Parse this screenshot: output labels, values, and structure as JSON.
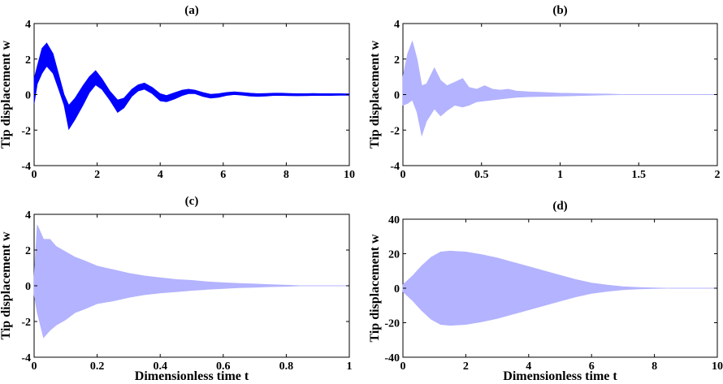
{
  "chart_data": [
    {
      "type": "line",
      "title": "(a)",
      "xlabel": "",
      "ylabel": "Tip displacement w",
      "xlim": [
        0,
        10
      ],
      "ylim": [
        -4,
        4
      ],
      "xticks": [
        "0",
        "2",
        "4",
        "6",
        "8",
        "10"
      ],
      "yticks": [
        "-4",
        "-2",
        "0",
        "2",
        "4"
      ],
      "grid": false,
      "color": "#0000ff",
      "series": [
        {
          "envelope": {
            "x": [
              0,
              0.1,
              0.25,
              0.4,
              0.6,
              0.8,
              0.95,
              1.1,
              1.3,
              1.55,
              1.75,
              1.95,
              2.15,
              2.4,
              2.65,
              2.85,
              3.1,
              3.3,
              3.5,
              3.75,
              4.0,
              4.2,
              4.45,
              4.7,
              4.9,
              5.1,
              5.35,
              5.6,
              5.85,
              6.1,
              6.35,
              6.6,
              6.85,
              7.1,
              7.35,
              7.6,
              7.85,
              8.1,
              8.35,
              8.6,
              8.85,
              9.1,
              9.4,
              9.7,
              10.0
            ],
            "upper": [
              0.9,
              1.6,
              2.6,
              2.9,
              2.3,
              1.0,
              0.0,
              -0.6,
              -0.2,
              0.5,
              1.0,
              1.35,
              0.9,
              0.2,
              -0.3,
              -0.2,
              0.3,
              0.55,
              0.65,
              0.4,
              0.05,
              -0.05,
              0.1,
              0.25,
              0.3,
              0.25,
              0.12,
              0.02,
              0.05,
              0.12,
              0.15,
              0.12,
              0.08,
              0.05,
              0.06,
              0.08,
              0.08,
              0.06,
              0.05,
              0.05,
              0.06,
              0.05,
              0.05,
              0.05,
              0.04
            ],
            "lower": [
              -0.5,
              0.6,
              1.2,
              1.6,
              1.2,
              0.2,
              -0.6,
              -1.95,
              -1.4,
              -0.6,
              0.1,
              0.55,
              0.3,
              -0.3,
              -1.0,
              -0.75,
              -0.1,
              0.2,
              0.3,
              0.05,
              -0.35,
              -0.4,
              -0.25,
              -0.05,
              0.05,
              0.05,
              -0.1,
              -0.2,
              -0.15,
              -0.05,
              0.0,
              -0.03,
              -0.08,
              -0.1,
              -0.08,
              -0.05,
              -0.05,
              -0.06,
              -0.07,
              -0.06,
              -0.05,
              -0.05,
              -0.05,
              -0.04,
              -0.04
            ]
          }
        }
      ]
    },
    {
      "type": "line",
      "title": "(b)",
      "xlabel": "",
      "ylabel": "Tip displacement w",
      "xlim": [
        0,
        2
      ],
      "ylim": [
        -4,
        4
      ],
      "xticks": [
        "0",
        "0.5",
        "1",
        "1.5",
        "2"
      ],
      "yticks": [
        "-4",
        "-2",
        "0",
        "2",
        "4"
      ],
      "grid": false,
      "color": "#b3b3ff",
      "series": [
        {
          "envelope": {
            "x": [
              0,
              0.03,
              0.06,
              0.09,
              0.12,
              0.15,
              0.2,
              0.24,
              0.28,
              0.33,
              0.38,
              0.42,
              0.47,
              0.52,
              0.57,
              0.62,
              0.67,
              0.72,
              0.8,
              0.9,
              1.0,
              1.1,
              1.2,
              1.3,
              1.4
            ],
            "upper": [
              1.0,
              2.3,
              3.0,
              2.0,
              0.5,
              0.6,
              1.5,
              0.8,
              0.5,
              0.7,
              0.9,
              0.4,
              0.3,
              0.5,
              0.3,
              0.25,
              0.3,
              0.2,
              0.15,
              0.12,
              0.08,
              0.06,
              0.04,
              0.03,
              0.0
            ],
            "lower": [
              -0.6,
              -0.5,
              -0.3,
              -1.0,
              -2.3,
              -1.5,
              -0.8,
              -1.2,
              -0.9,
              -0.6,
              -0.7,
              -0.6,
              -0.4,
              -0.35,
              -0.3,
              -0.25,
              -0.2,
              -0.15,
              -0.12,
              -0.1,
              -0.08,
              -0.06,
              -0.04,
              -0.02,
              0.0
            ]
          }
        }
      ]
    },
    {
      "type": "line",
      "title": "(c)",
      "xlabel": "Dimensionless time t",
      "ylabel": "Tip displacement w",
      "xlim": [
        0,
        1
      ],
      "ylim": [
        -4,
        4
      ],
      "xticks": [
        "0",
        "0.2",
        "0.4",
        "0.6",
        "0.8",
        "1"
      ],
      "yticks": [
        "-4",
        "-2",
        "0",
        "2",
        "4"
      ],
      "grid": false,
      "color": "#b3b3ff",
      "series": [
        {
          "envelope": {
            "x": [
              0,
              0.01,
              0.03,
              0.05,
              0.07,
              0.1,
              0.13,
              0.16,
              0.2,
              0.25,
              0.3,
              0.35,
              0.4,
              0.45,
              0.5,
              0.55,
              0.6,
              0.65,
              0.7,
              0.75,
              0.8,
              0.85
            ],
            "upper": [
              0.5,
              3.4,
              2.6,
              2.6,
              2.2,
              1.9,
              1.6,
              1.4,
              1.1,
              0.9,
              0.7,
              0.55,
              0.45,
              0.35,
              0.3,
              0.22,
              0.17,
              0.13,
              0.1,
              0.06,
              0.03,
              0.0
            ],
            "lower": [
              -0.5,
              -1.5,
              -2.9,
              -2.5,
              -2.2,
              -1.9,
              -1.5,
              -1.3,
              -1.0,
              -0.85,
              -0.65,
              -0.5,
              -0.4,
              -0.33,
              -0.26,
              -0.2,
              -0.15,
              -0.11,
              -0.08,
              -0.05,
              -0.03,
              0.0
            ]
          }
        }
      ]
    },
    {
      "type": "line",
      "title": "(d)",
      "xlabel": "Dimensionless time t",
      "ylabel": "Tip displacement w",
      "xlim": [
        0,
        10
      ],
      "ylim": [
        -40,
        40
      ],
      "xticks": [
        "0",
        "2",
        "4",
        "6",
        "8",
        "10"
      ],
      "yticks": [
        "-40",
        "-20",
        "0",
        "20",
        "40"
      ],
      "grid": false,
      "color": "#b3b3ff",
      "series": [
        {
          "envelope": {
            "x": [
              0,
              0.3,
              0.6,
              0.9,
              1.2,
              1.5,
              2.0,
              2.5,
              3.0,
              3.5,
              4.0,
              4.5,
              5.0,
              5.5,
              6.0,
              6.5,
              7.0,
              7.5,
              8.0,
              8.5
            ],
            "upper": [
              2,
              7,
              13,
              18,
              21,
              21.5,
              21,
              19.5,
              17.5,
              15,
              12.5,
              10,
              7.5,
              5,
              3,
              1.8,
              0.9,
              0.4,
              0.15,
              0.0
            ],
            "lower": [
              -2,
              -7,
              -13,
              -18,
              -21,
              -21.5,
              -21,
              -19.5,
              -17.5,
              -15,
              -12.5,
              -10,
              -7.5,
              -5,
              -3,
              -1.8,
              -0.9,
              -0.4,
              -0.15,
              0.0
            ]
          }
        }
      ]
    }
  ]
}
